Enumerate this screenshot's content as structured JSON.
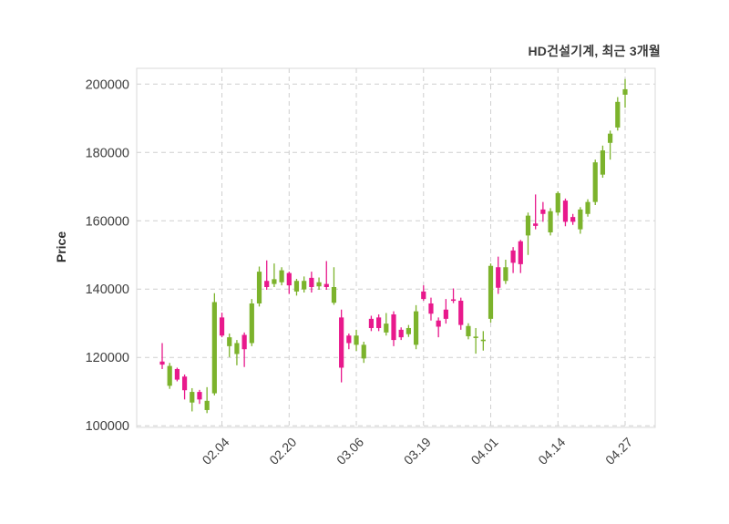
{
  "title": "HD건설기계, 최근 3개월",
  "y_axis": {
    "label": "Price"
  },
  "chart_data": {
    "type": "candlestick",
    "title": "HD건설기계, 최근 3개월",
    "ylabel": "Price",
    "ylim": [
      99500,
      204600
    ],
    "grid": "dashed",
    "legend": "none",
    "colors": {
      "up": "#7CB32C",
      "down": "#E8198C",
      "grid": "#cfcfcf",
      "border": "#d9d9d9"
    },
    "y_ticks": [
      100000,
      120000,
      140000,
      160000,
      180000,
      200000
    ],
    "x_ticks": [
      {
        "label": "02.04",
        "index": 8
      },
      {
        "label": "02.20",
        "index": 17
      },
      {
        "label": "03.06",
        "index": 26
      },
      {
        "label": "03.19",
        "index": 35
      },
      {
        "label": "04.01",
        "index": 44
      },
      {
        "label": "04.14",
        "index": 53
      },
      {
        "label": "04.27",
        "index": 62
      }
    ],
    "ohlc_order": [
      "open",
      "high",
      "low",
      "close"
    ],
    "candles": [
      [
        118800,
        124200,
        116600,
        117900
      ],
      [
        111700,
        118400,
        110800,
        117500
      ],
      [
        116600,
        117000,
        113000,
        113500
      ],
      [
        114400,
        115000,
        107700,
        110400
      ],
      [
        106800,
        111000,
        104200,
        109900
      ],
      [
        109900,
        110500,
        106400,
        107700
      ],
      [
        104600,
        111300,
        103700,
        107300
      ],
      [
        109500,
        138800,
        108900,
        136200
      ],
      [
        131700,
        133100,
        125900,
        126400
      ],
      [
        123300,
        127000,
        120100,
        125900
      ],
      [
        121000,
        125100,
        117700,
        124200
      ],
      [
        126600,
        127300,
        117200,
        122400
      ],
      [
        124200,
        137100,
        123300,
        135800
      ],
      [
        135800,
        146600,
        134900,
        145100
      ],
      [
        142400,
        148400,
        139800,
        140600
      ],
      [
        141500,
        147500,
        140600,
        142900
      ],
      [
        142000,
        146400,
        141100,
        145500
      ],
      [
        144700,
        145100,
        138600,
        141100
      ],
      [
        139300,
        143000,
        138100,
        142400
      ],
      [
        139900,
        143700,
        139000,
        142400
      ],
      [
        143300,
        145100,
        139000,
        140600
      ],
      [
        140800,
        143400,
        139800,
        142000
      ],
      [
        141500,
        148200,
        139800,
        140600
      ],
      [
        136000,
        146400,
        135400,
        140600
      ],
      [
        131700,
        134000,
        112700,
        117000
      ],
      [
        126400,
        127000,
        122400,
        124200
      ],
      [
        123700,
        128100,
        121900,
        126400
      ],
      [
        119700,
        124600,
        118400,
        123700
      ],
      [
        131300,
        132200,
        127700,
        128600
      ],
      [
        131700,
        132600,
        127700,
        128600
      ],
      [
        127300,
        133000,
        126400,
        129900
      ],
      [
        132600,
        133500,
        123300,
        125100
      ],
      [
        128100,
        128800,
        125100,
        125900
      ],
      [
        126800,
        129500,
        126000,
        128600
      ],
      [
        123700,
        135300,
        122400,
        133500
      ],
      [
        139300,
        141100,
        136600,
        137100
      ],
      [
        135800,
        137500,
        130800,
        132800
      ],
      [
        130800,
        131700,
        125900,
        129000
      ],
      [
        134000,
        137100,
        129900,
        131300
      ],
      [
        137000,
        140200,
        135900,
        136600
      ],
      [
        136600,
        137500,
        128100,
        129500
      ],
      [
        126200,
        130000,
        125300,
        129200
      ],
      [
        125700,
        128600,
        121100,
        126100
      ],
      [
        124800,
        127700,
        122000,
        125200
      ],
      [
        131300,
        147500,
        130200,
        146800
      ],
      [
        146400,
        149500,
        138600,
        140400
      ],
      [
        142400,
        148600,
        141500,
        146400
      ],
      [
        151300,
        152300,
        144700,
        147700
      ],
      [
        154000,
        154400,
        144700,
        147300
      ],
      [
        155700,
        162400,
        150000,
        161500
      ],
      [
        159200,
        167700,
        157500,
        158500
      ],
      [
        163300,
        165500,
        159700,
        162000
      ],
      [
        156600,
        163700,
        155700,
        162800
      ],
      [
        162400,
        168600,
        161500,
        168100
      ],
      [
        165900,
        166500,
        158400,
        159700
      ],
      [
        161100,
        162000,
        158800,
        159700
      ],
      [
        157500,
        164000,
        156200,
        163300
      ],
      [
        162000,
        166300,
        161200,
        165500
      ],
      [
        165500,
        177900,
        164600,
        177100
      ],
      [
        173500,
        182000,
        172600,
        180600
      ],
      [
        182800,
        186400,
        177900,
        185500
      ],
      [
        187300,
        196200,
        186400,
        194800
      ],
      [
        196900,
        201500,
        193100,
        198500
      ]
    ]
  }
}
